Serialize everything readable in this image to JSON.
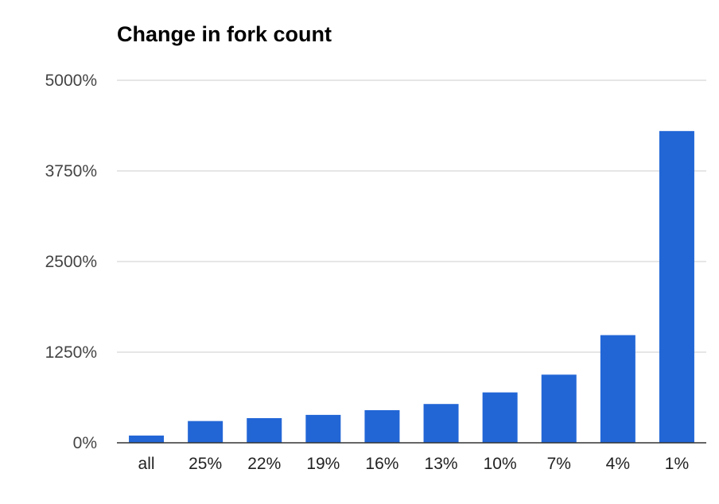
{
  "chart_data": {
    "type": "bar",
    "title": "Change in fork count",
    "xlabel": "",
    "ylabel": "",
    "categories": [
      "all",
      "25%",
      "22%",
      "19%",
      "16%",
      "13%",
      "10%",
      "7%",
      "4%",
      "1%"
    ],
    "values": [
      100,
      300,
      340,
      385,
      450,
      535,
      695,
      940,
      1485,
      4300
    ],
    "ylim": [
      0,
      5000
    ],
    "yticks": [
      0,
      1250,
      2500,
      3750,
      5000
    ],
    "ytick_labels": [
      "0%",
      "1250%",
      "2500%",
      "3750%",
      "5000%"
    ],
    "grid": true,
    "legend": "none",
    "bar_color": "#2266d6",
    "gridline_color": "#cccccc",
    "baseline_color": "#333333"
  }
}
